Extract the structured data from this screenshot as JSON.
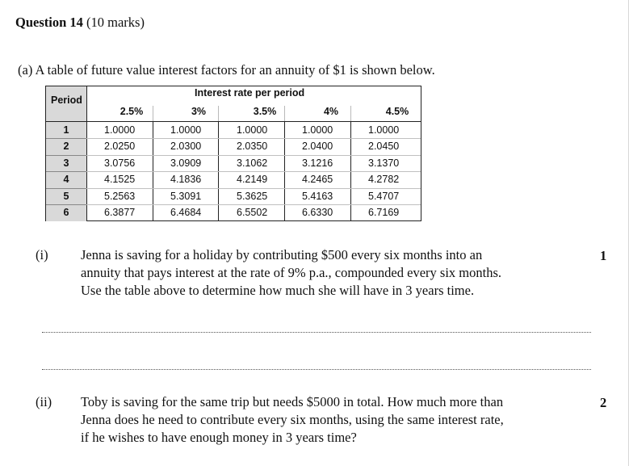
{
  "question": {
    "title_bold": "Question 14",
    "title_marks": "(10 marks)"
  },
  "part_a": {
    "intro": "(a) A table of future value interest factors for an annuity of $1 is shown below."
  },
  "table": {
    "period_header": "Period",
    "group_header": "Interest rate per period",
    "rates": [
      "2.5%",
      "3%",
      "3.5%",
      "4%",
      "4.5%"
    ],
    "rows": [
      {
        "period": "1",
        "values": [
          "1.0000",
          "1.0000",
          "1.0000",
          "1.0000",
          "1.0000"
        ]
      },
      {
        "period": "2",
        "values": [
          "2.0250",
          "2.0300",
          "2.0350",
          "2.0400",
          "2.0450"
        ]
      },
      {
        "period": "3",
        "values": [
          "3.0756",
          "3.0909",
          "3.1062",
          "3.1216",
          "3.1370"
        ]
      },
      {
        "period": "4",
        "values": [
          "4.1525",
          "4.1836",
          "4.2149",
          "4.2465",
          "4.2782"
        ]
      },
      {
        "period": "5",
        "values": [
          "5.2563",
          "5.3091",
          "5.3625",
          "5.4163",
          "5.4707"
        ]
      },
      {
        "period": "6",
        "values": [
          "6.3877",
          "6.4684",
          "6.5502",
          "6.6330",
          "6.7169"
        ]
      }
    ]
  },
  "part_i": {
    "label": "(i)",
    "lines": [
      "Jenna is saving for a holiday by contributing $500 every six months into an",
      "annuity that pays interest at the rate of 9% p.a., compounded every six months.",
      "Use the table above to determine how much she will have in 3 years time."
    ],
    "marks": "1"
  },
  "part_ii": {
    "label": "(ii)",
    "lines": [
      "Toby is saving for the same trip but needs $5000 in total. How much more than",
      "Jenna does he need to contribute every six months, using the same interest rate,",
      "if he wishes to have enough money in 3 years time?"
    ],
    "marks": "2"
  }
}
